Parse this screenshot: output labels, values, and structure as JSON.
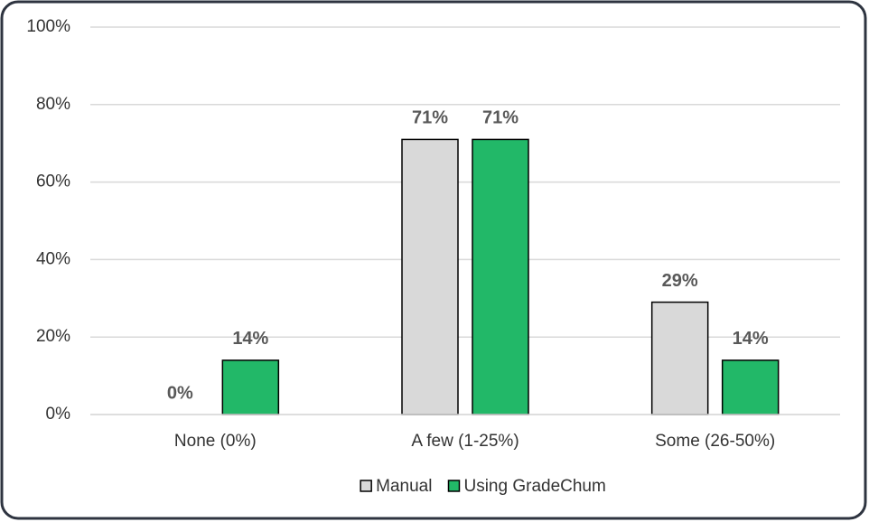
{
  "chart_data": {
    "type": "bar",
    "categories": [
      "None (0%)",
      "A few (1-25%)",
      "Some (26-50%)"
    ],
    "series": [
      {
        "name": "Manual",
        "color": "#d9d9d9",
        "values": [
          0,
          71,
          29
        ],
        "value_labels": [
          "0%",
          "71%",
          "29%"
        ]
      },
      {
        "name": "Using GradeChum",
        "color": "#22b868",
        "values": [
          14,
          71,
          14
        ],
        "value_labels": [
          "14%",
          "71%",
          "14%"
        ]
      }
    ],
    "ylim": [
      0,
      100
    ],
    "yticks": [
      {
        "value": 0,
        "label": "0%"
      },
      {
        "value": 20,
        "label": "20%"
      },
      {
        "value": 40,
        "label": "40%"
      },
      {
        "value": 60,
        "label": "60%"
      },
      {
        "value": 80,
        "label": "80%"
      },
      {
        "value": 100,
        "label": "100%"
      }
    ],
    "grid": true,
    "legend": "bottom"
  }
}
